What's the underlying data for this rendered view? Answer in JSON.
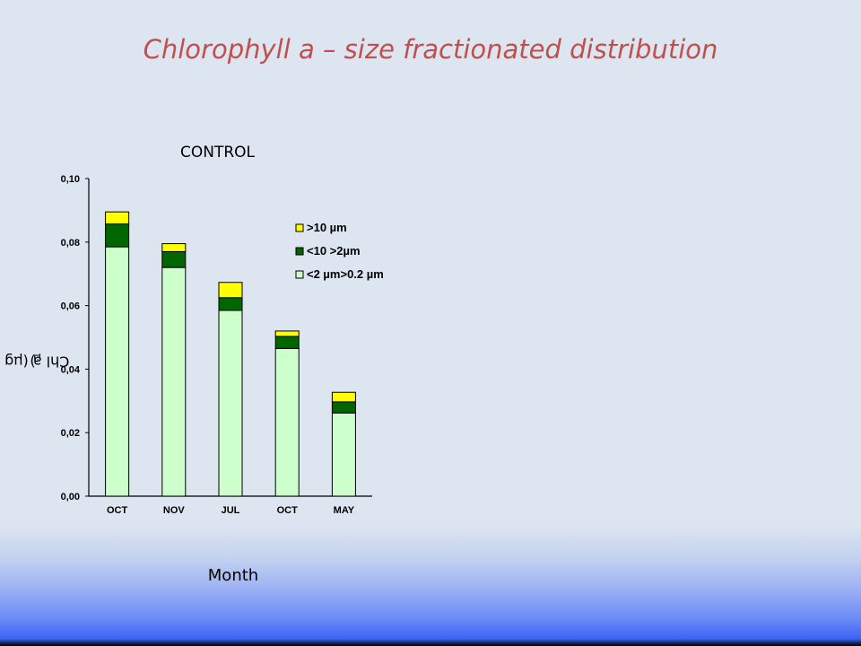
{
  "slide": {
    "title": "Chlorophyll a – size fractionated distribution"
  },
  "chart_data": {
    "type": "bar",
    "stacked": true,
    "title": "CONTROL",
    "xlabel": "Month",
    "ylabel_main": "Chl a (µg l",
    "ylabel_sup": "-1",
    "ylabel_end": ")",
    "categories": [
      "OCT",
      "NOV",
      "JUL",
      "OCT",
      "MAY"
    ],
    "series": [
      {
        "name": "<2 µm>0.2 µm",
        "color": "#ccffcc",
        "values": [
          0.0785,
          0.072,
          0.0585,
          0.0465,
          0.0262
        ]
      },
      {
        "name": "<10 >2µm",
        "color": "#006600",
        "values": [
          0.0072,
          0.005,
          0.004,
          0.0038,
          0.0035
        ]
      },
      {
        "name": ">10 µm",
        "color": "#ffff00",
        "values": [
          0.0038,
          0.0025,
          0.0048,
          0.0017,
          0.003
        ]
      }
    ],
    "ylim": [
      0,
      0.1
    ],
    "yticks": [
      "0,00",
      "0,02",
      "0,04",
      "0,06",
      "0,08",
      "0,10"
    ],
    "legend_position": "top-right",
    "grid": false
  }
}
